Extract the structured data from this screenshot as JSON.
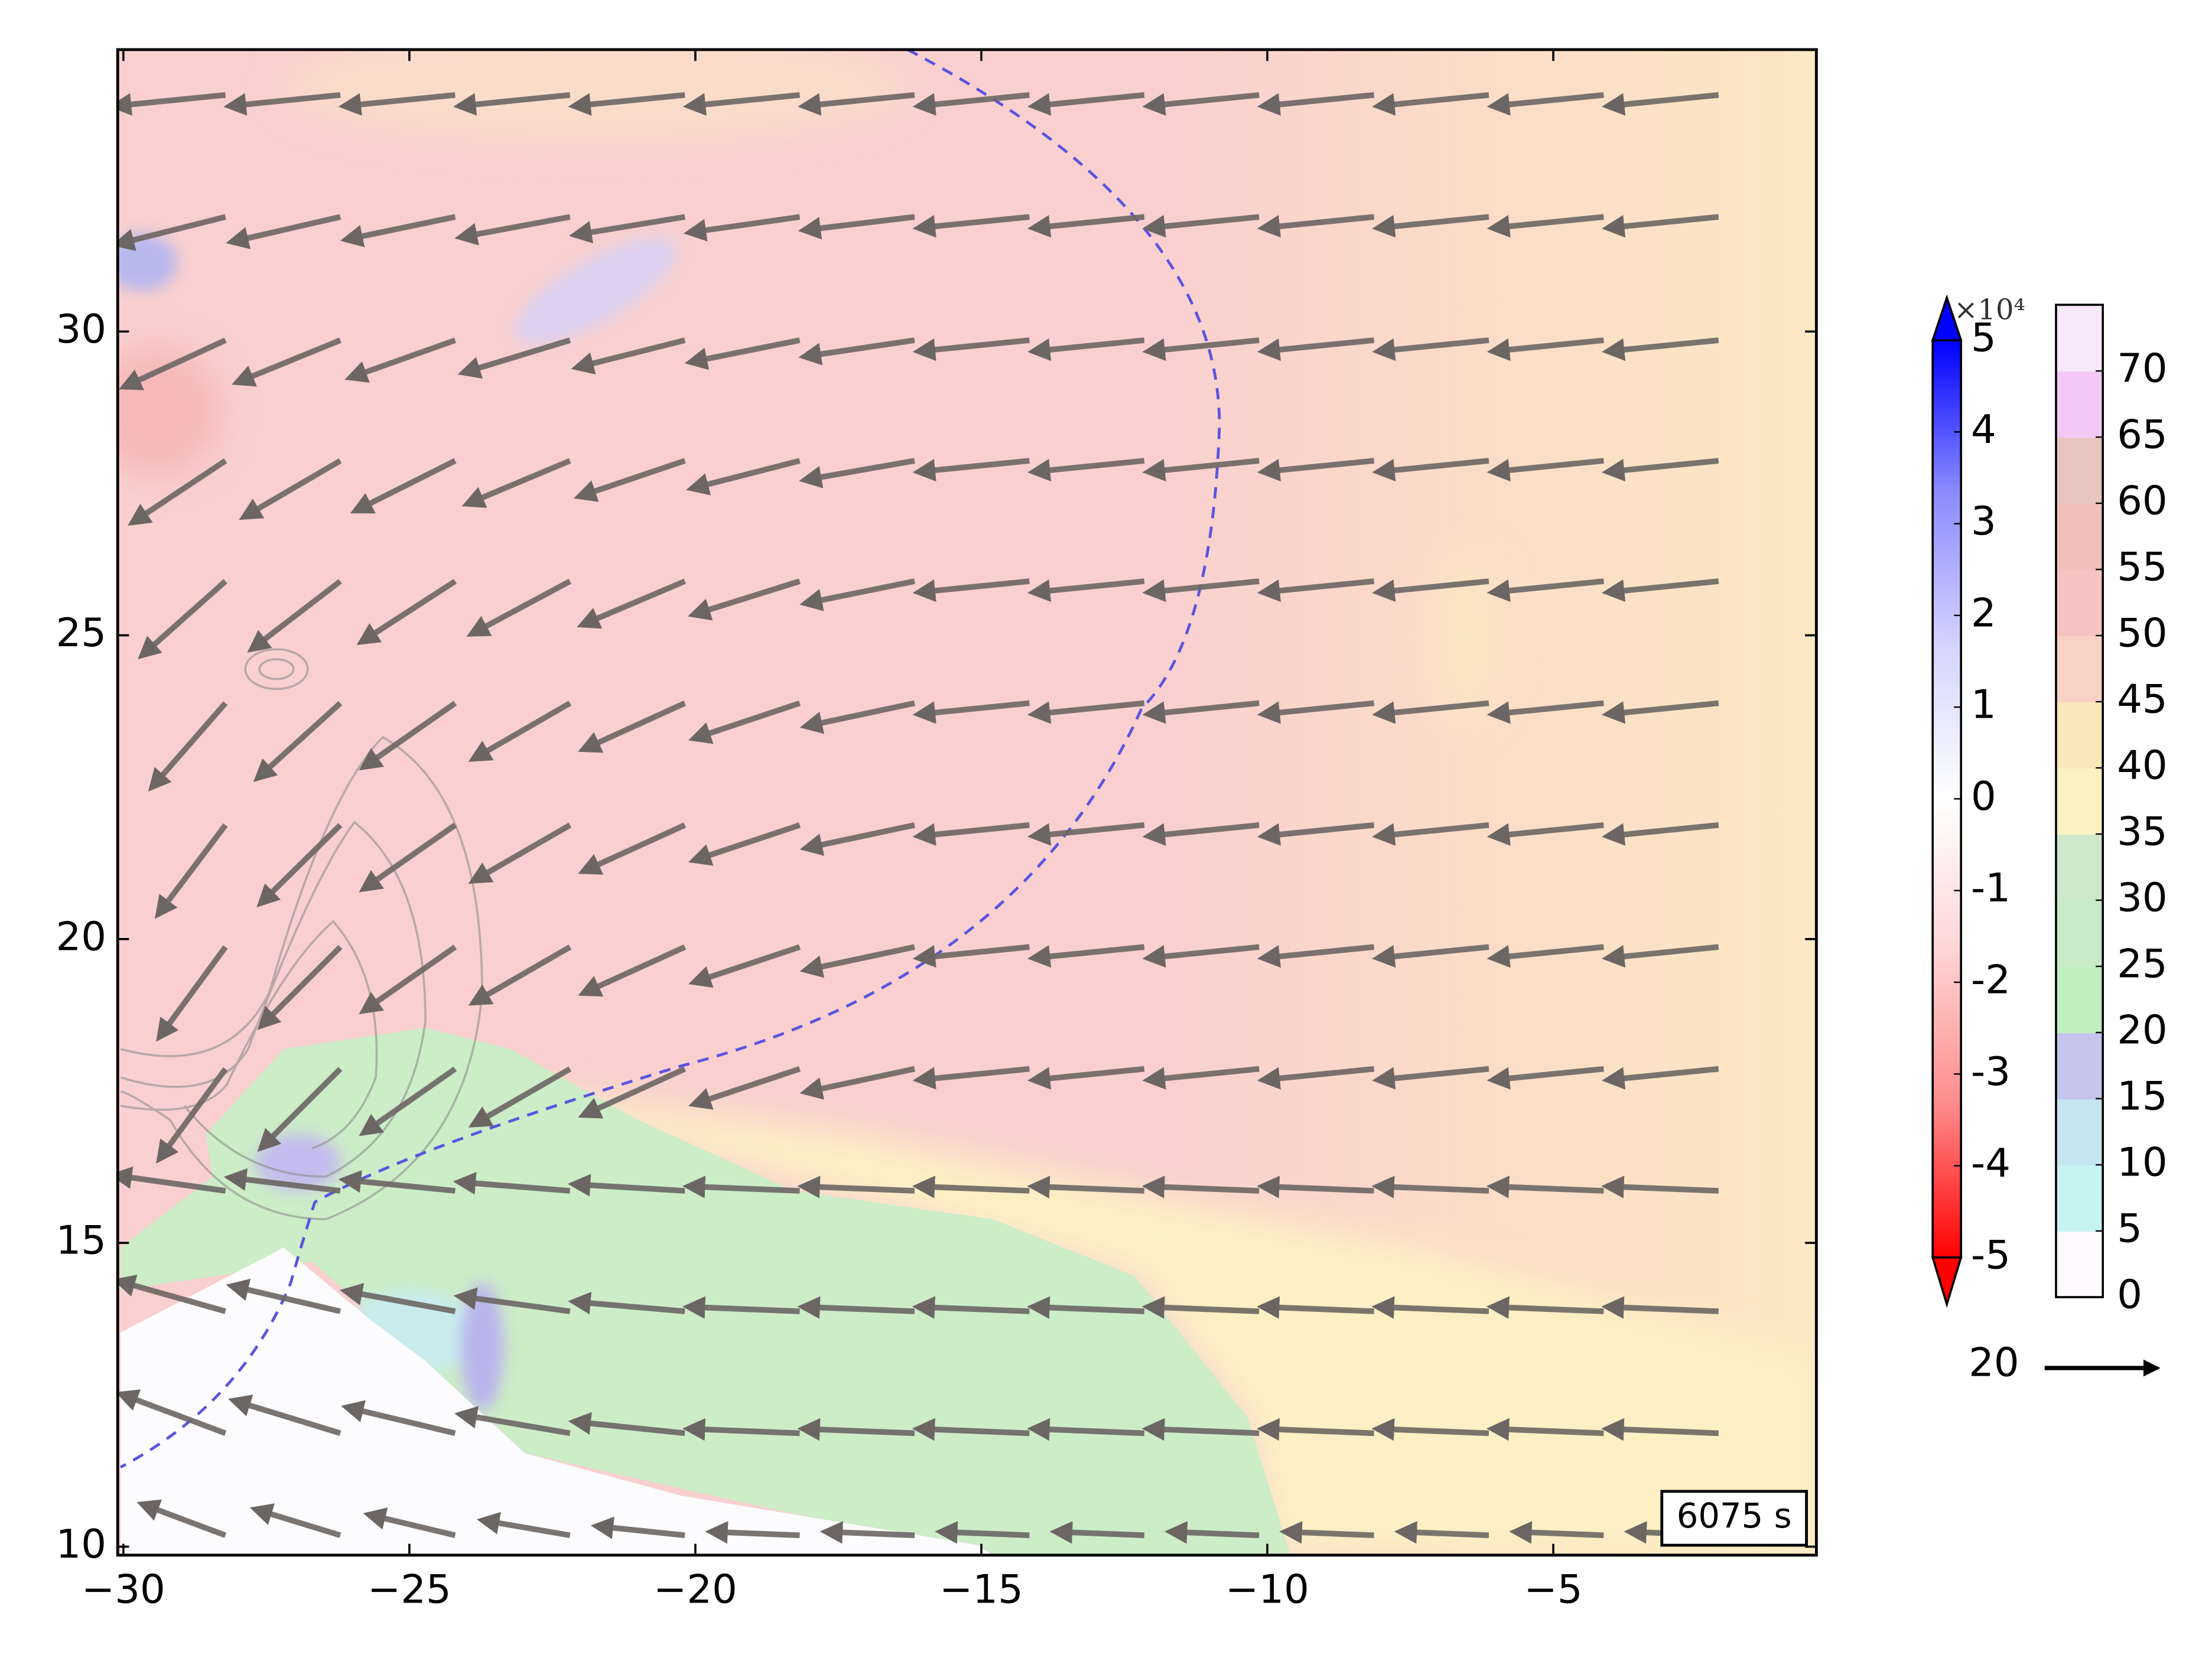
{
  "chart_data": {
    "type": "quiver",
    "xlim": [
      -30.1,
      -0.4
    ],
    "ylim": [
      9.86,
      34.64
    ],
    "xticks": [
      {
        "value": -30,
        "label": "−30"
      },
      {
        "value": -25,
        "label": "−25"
      },
      {
        "value": -20,
        "label": "−20"
      },
      {
        "value": -15,
        "label": "−15"
      },
      {
        "value": -10,
        "label": "−10"
      },
      {
        "value": -5,
        "label": "−5"
      }
    ],
    "yticks": [
      10,
      15,
      20,
      25,
      30
    ],
    "annotation": "6075 s",
    "quiver_key": {
      "value": 20
    },
    "colorbars": [
      {
        "lim": [
          -5,
          5
        ],
        "ticks": [
          5,
          4,
          3,
          2,
          1,
          0,
          -1,
          -2,
          -3,
          -4,
          -5
        ],
        "exponent": "×10⁴",
        "colors": [
          "#ff0000",
          "#ff8c8c",
          "#ffd4d4",
          "#ffffff",
          "#d4d4ff",
          "#8c8cff",
          "#0000ff"
        ]
      },
      {
        "lim": [
          0,
          75
        ],
        "ticks": [
          0,
          5,
          10,
          15,
          20,
          25,
          30,
          35,
          40,
          45,
          50,
          55,
          60,
          65,
          70
        ],
        "colors": [
          "#fdfafd",
          "#c8f3f3",
          "#c5e6f0",
          "#c4c4ec",
          "#bfeec0",
          "#c8eac9",
          "#cfe8cc",
          "#fcf2c0",
          "#fae8b8",
          "#f8d2c4",
          "#f6c2c2",
          "#f2c0bb",
          "#e8c6c0",
          "#f3c8f4",
          "#f8e6fa"
        ]
      }
    ]
  }
}
